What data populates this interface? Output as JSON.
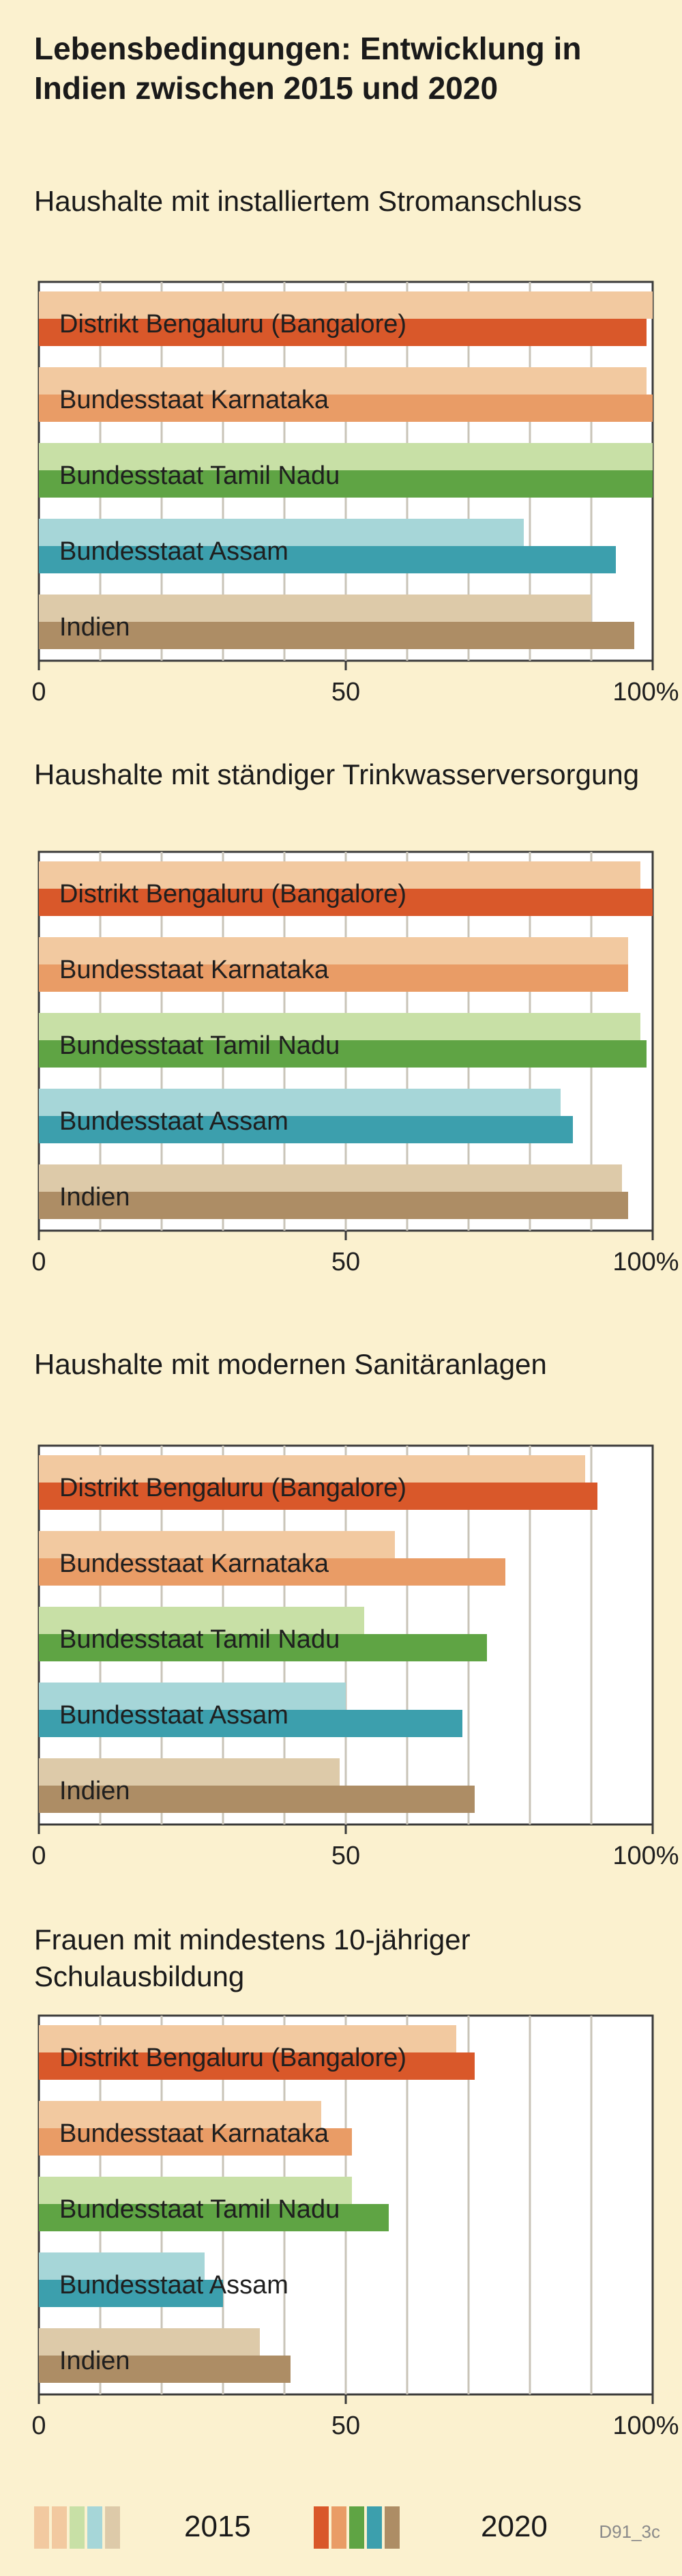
{
  "title": "Lebensbedingungen: Entwicklung in Indien zwischen 2015 und 2020",
  "chart_data": [
    {
      "type": "bar",
      "title": "Haushalte mit installiertem Stromanschluss",
      "categories": [
        "Distrikt Bengaluru (Bangalore)",
        "Bundesstaat Karnataka",
        "Bundesstaat Tamil Nadu",
        "Bundesstaat Assam",
        "Indien"
      ],
      "series": [
        {
          "name": "2015",
          "values": [
            100,
            99,
            100,
            79,
            90
          ]
        },
        {
          "name": "2020",
          "values": [
            99,
            100,
            100,
            94,
            97
          ]
        }
      ],
      "xlim": [
        0,
        100
      ],
      "ticks": [
        "0",
        "50",
        "100%"
      ]
    },
    {
      "type": "bar",
      "title": "Haushalte mit ständiger Trinkwasserversorgung",
      "categories": [
        "Distrikt Bengaluru (Bangalore)",
        "Bundesstaat Karnataka",
        "Bundesstaat Tamil Nadu",
        "Bundesstaat Assam",
        "Indien"
      ],
      "series": [
        {
          "name": "2015",
          "values": [
            98,
            96,
            98,
            85,
            95
          ]
        },
        {
          "name": "2020",
          "values": [
            100,
            96,
            99,
            87,
            96
          ]
        }
      ],
      "xlim": [
        0,
        100
      ],
      "ticks": [
        "0",
        "50",
        "100%"
      ]
    },
    {
      "type": "bar",
      "title": "Haushalte mit modernen Sanitäranlagen",
      "categories": [
        "Distrikt Bengaluru (Bangalore)",
        "Bundesstaat Karnataka",
        "Bundesstaat Tamil Nadu",
        "Bundesstaat Assam",
        "Indien"
      ],
      "series": [
        {
          "name": "2015",
          "values": [
            89,
            58,
            53,
            50,
            49
          ]
        },
        {
          "name": "2020",
          "values": [
            91,
            76,
            73,
            69,
            71
          ]
        }
      ],
      "xlim": [
        0,
        100
      ],
      "ticks": [
        "0",
        "50",
        "100%"
      ]
    },
    {
      "type": "bar",
      "title": "Frauen mit mindestens 10-jähriger Schulausbildung",
      "categories": [
        "Distrikt Bengaluru (Bangalore)",
        "Bundesstaat Karnataka",
        "Bundesstaat Tamil Nadu",
        "Bundesstaat Assam",
        "Indien"
      ],
      "series": [
        {
          "name": "2015",
          "values": [
            68,
            46,
            51,
            27,
            36
          ]
        },
        {
          "name": "2020",
          "values": [
            71,
            51,
            57,
            30,
            41
          ]
        }
      ],
      "xlim": [
        0,
        100
      ],
      "ticks": [
        "0",
        "50",
        "100%"
      ]
    }
  ],
  "colors": {
    "2015": [
      "#f2c9a0",
      "#f2c9a0",
      "#c8e0a6",
      "#a6d6d8",
      "#ddcaa9"
    ],
    "2020": [
      "#d9582a",
      "#e99c66",
      "#5fa444",
      "#3c9fad",
      "#ad8d65"
    ]
  },
  "legend": {
    "label_2015": "2015",
    "label_2020": "2020",
    "source": "D91_3c"
  }
}
